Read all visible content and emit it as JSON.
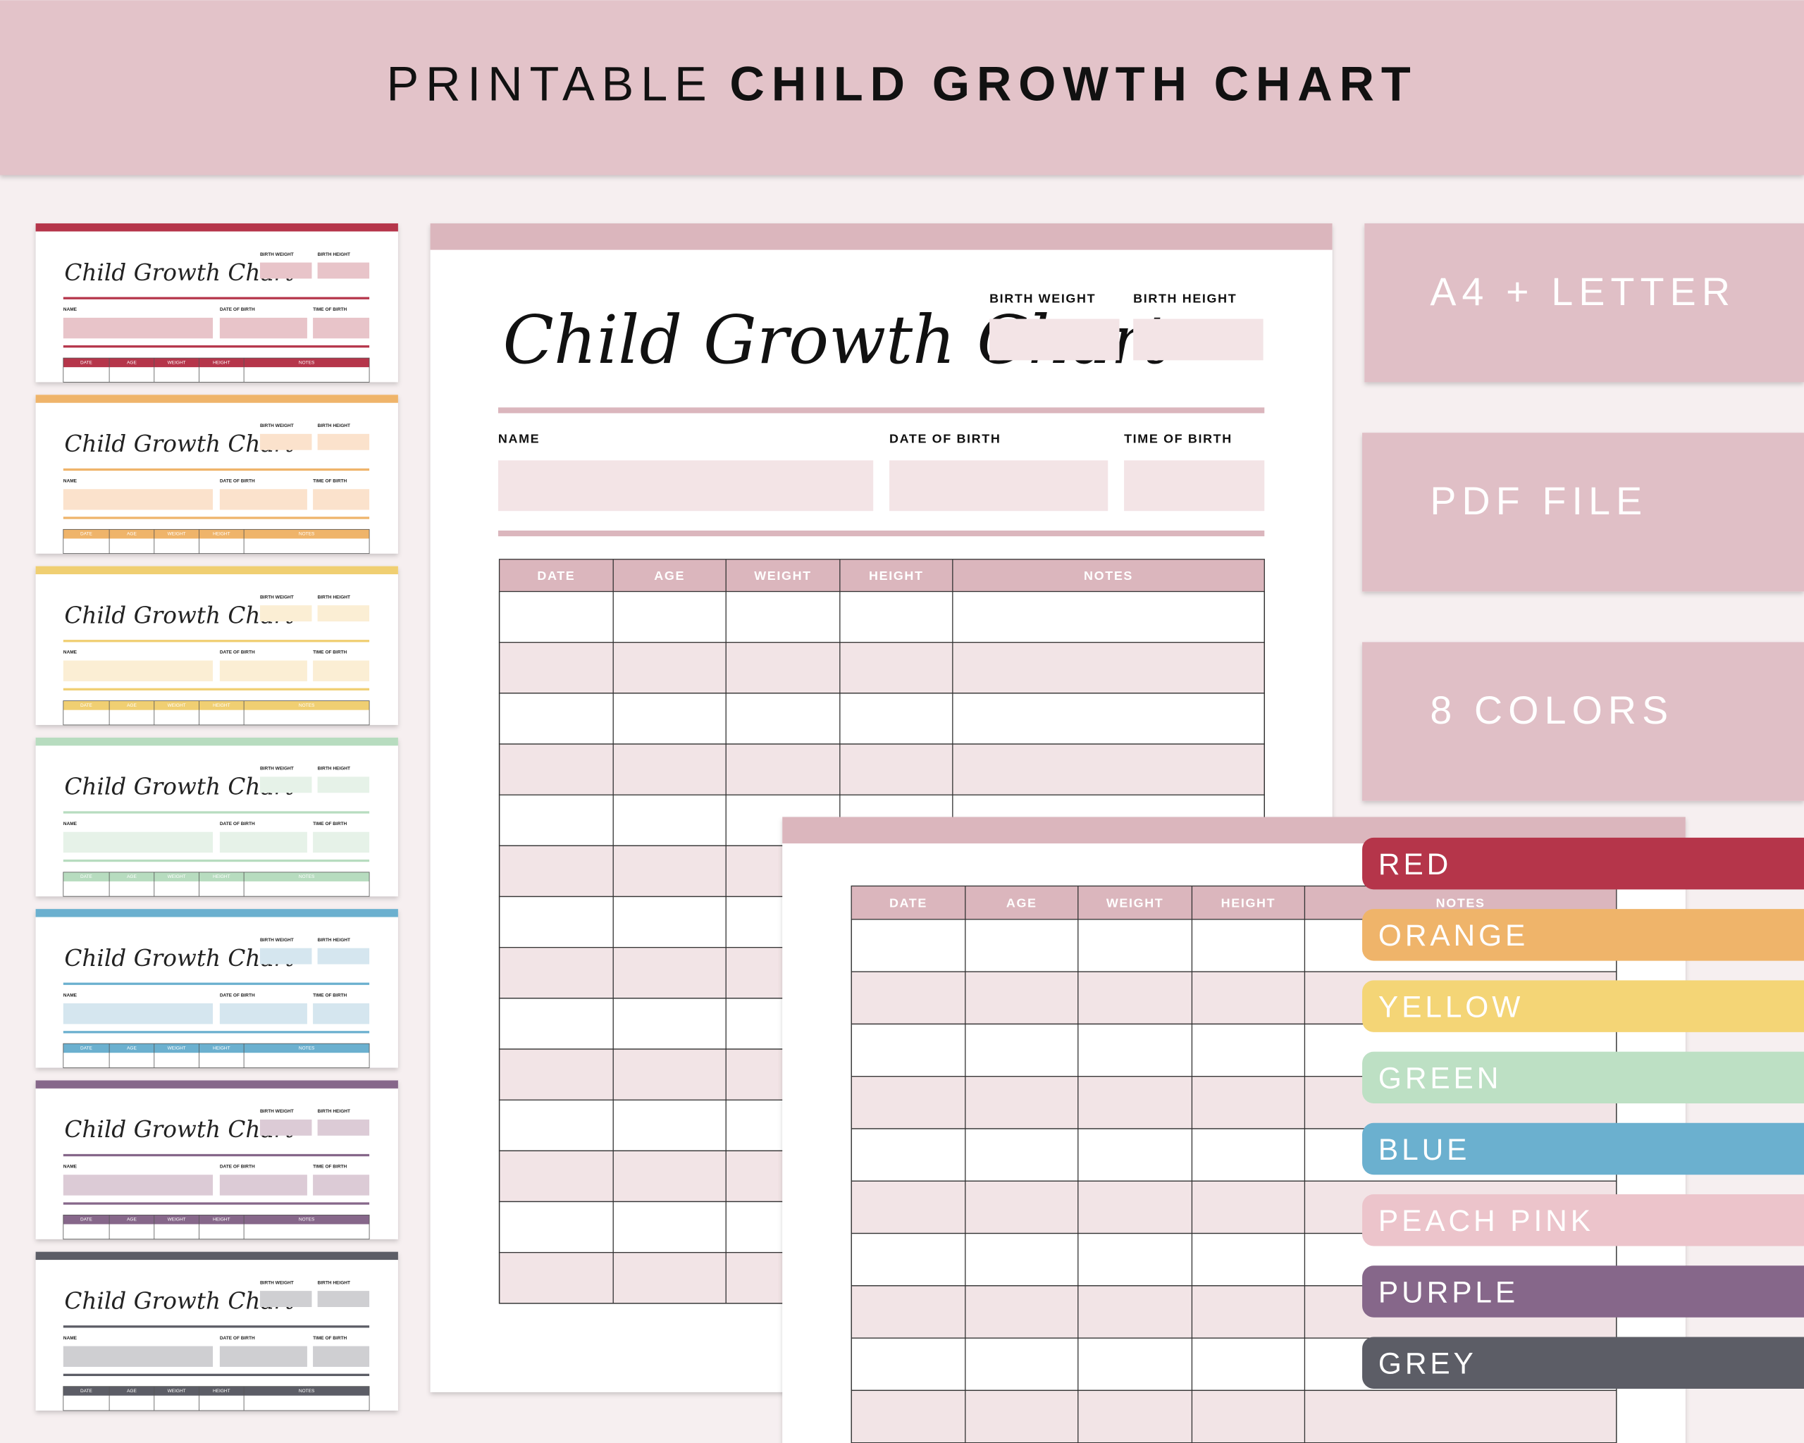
{
  "header": {
    "light": "PRINTABLE",
    "bold": "CHILD GROWTH CHART"
  },
  "sheet": {
    "title": "Child Growth Chart",
    "birth_weight": "BIRTH WEIGHT",
    "birth_height": "BIRTH HEIGHT",
    "name": "NAME",
    "date_of_birth": "DATE OF BIRTH",
    "time_of_birth": "TIME OF BIRTH",
    "columns": [
      "DATE",
      "AGE",
      "WEIGHT",
      "HEIGHT",
      "NOTES"
    ]
  },
  "features": [
    "A4 + LETTER",
    "PDF FILE",
    "8 COLORS"
  ],
  "colors": [
    "RED",
    "ORANGE",
    "YELLOW",
    "GREEN",
    "BLUE",
    "PEACH PINK",
    "PURPLE",
    "GREY"
  ]
}
